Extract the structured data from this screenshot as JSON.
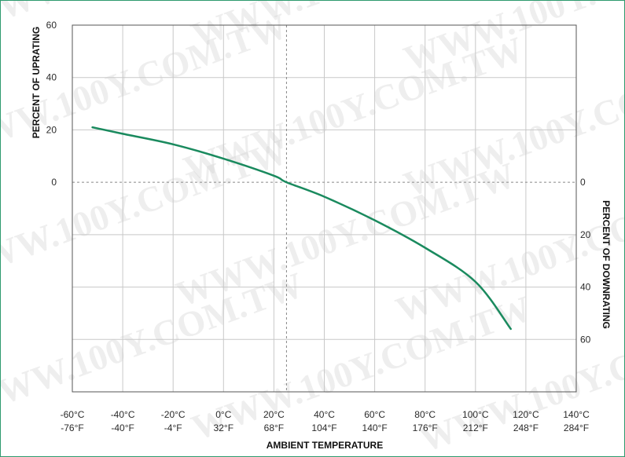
{
  "watermark": "WWW.100Y.COM.TW",
  "chart_data": {
    "type": "line",
    "title": "",
    "xlabel": "AMBIENT TEMPERATURE",
    "ylabel_left": "PERCENT OF UPRATING",
    "ylabel_right": "PERCENT OF DOWNRATING",
    "x_ticks_c": [
      "-60°C",
      "-40°C",
      "-20°C",
      "0°C",
      "20°C",
      "40°C",
      "60°C",
      "80°C",
      "100°C",
      "120°C",
      "140°C"
    ],
    "x_ticks_f": [
      "-76°F",
      "-40°F",
      "-4°F",
      "32°F",
      "68°F",
      "104°F",
      "140°F",
      "176°F",
      "212°F",
      "248°F",
      "284°F"
    ],
    "xlim": [
      -60,
      140
    ],
    "ylim": [
      -80,
      60
    ],
    "y_ticks_left": [
      {
        "value": 60,
        "label": "60"
      },
      {
        "value": 40,
        "label": "40"
      },
      {
        "value": 20,
        "label": "20"
      },
      {
        "value": 0,
        "label": "0"
      }
    ],
    "y_ticks_right": [
      {
        "value": 0,
        "label": "0"
      },
      {
        "value": -20,
        "label": "20"
      },
      {
        "value": -40,
        "label": "40"
      },
      {
        "value": -60,
        "label": "60"
      }
    ],
    "reference_lines": {
      "x": 25,
      "y": 0
    },
    "grid": true,
    "series": [
      {
        "color": "#1a8a5e",
        "x": [
          -52,
          -40,
          -20,
          0,
          20,
          25,
          40,
          60,
          80,
          100,
          114
        ],
        "y": [
          21,
          18.5,
          14.5,
          9,
          2.5,
          0,
          -5.5,
          -14.5,
          -25,
          -38,
          -56
        ]
      }
    ]
  }
}
